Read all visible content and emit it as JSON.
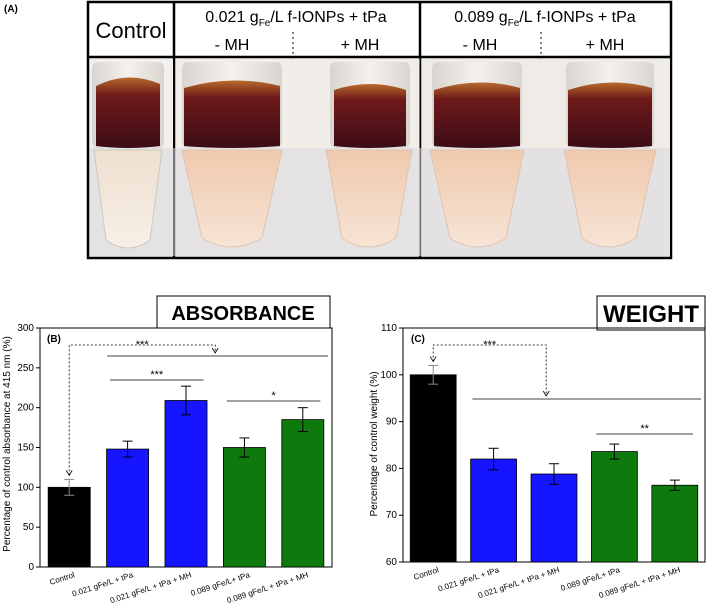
{
  "panel_a": {
    "label": "(A)",
    "control_header": "Control",
    "group1": {
      "prefix": "0.021 g",
      "sub": "Fe",
      "suffix": "/L f-IONPs + tPa",
      "minus": "- MH",
      "plus": "+ MH"
    },
    "group2": {
      "prefix": "0.089 g",
      "sub": "Fe",
      "suffix": "/L f-IONPs + tPa",
      "minus": "- MH",
      "plus": "+ MH"
    },
    "colors": {
      "clot_dark": "#4a0f18",
      "clot_red": "#7a1a22",
      "liquid_top": "#e6b89a",
      "liquid_bottom": "#f3dcc8",
      "frame": "#000000"
    }
  },
  "chart_data": [
    {
      "type": "bar",
      "panel_label": "(B)",
      "title": "ABSORBANCE",
      "ylabel": "Percentage of control absorbance at 415 nm (%)",
      "xlabel": "",
      "ylim": [
        0,
        300
      ],
      "yticks": [
        "0",
        "50",
        "100",
        "150",
        "200",
        "250",
        "300"
      ],
      "categories": [
        "Control",
        "0.021 gFe/L + tPa",
        "0.021 gFe/L + tPa + MH",
        "0.089 gFe/L+ tPa",
        "0.089 gFe/L + tPa + MH"
      ],
      "values": [
        100,
        148,
        209,
        150,
        185
      ],
      "errors": [
        10,
        10,
        18,
        12,
        15
      ],
      "colors": [
        "#000000",
        "#1515ff",
        "#1515ff",
        "#0e7a0e",
        "#0e7a0e"
      ],
      "significance": [
        {
          "label": "***",
          "from": 0,
          "to": "1-4",
          "style": "dashed-arrow"
        },
        {
          "label": "***",
          "from": 1,
          "to": 2,
          "style": "line"
        },
        {
          "label": "*",
          "from": 3,
          "to": 4,
          "style": "line"
        }
      ]
    },
    {
      "type": "bar",
      "panel_label": "(C)",
      "title": "WEIGHT",
      "ylabel": "Percentage of control weight (%)",
      "xlabel": "",
      "ylim": [
        60,
        110
      ],
      "yticks": [
        "60",
        "70",
        "80",
        "90",
        "100",
        "110"
      ],
      "categories": [
        "Control",
        "0.021 gFe/L + tPa",
        "0.021 gFe/L + tPa + MH",
        "0.089 gFe/L+ tPa",
        "0.089 gFe/L + tPa + MH"
      ],
      "values": [
        100,
        82,
        78.8,
        83.6,
        76.4
      ],
      "errors": [
        2,
        2.3,
        2.2,
        1.6,
        1.1
      ],
      "colors": [
        "#000000",
        "#1515ff",
        "#1515ff",
        "#0e7a0e",
        "#0e7a0e"
      ],
      "significance": [
        {
          "label": "***",
          "from": 0,
          "to": "1-4",
          "style": "dashed-arrow"
        },
        {
          "label": "**",
          "from": 3,
          "to": 4,
          "style": "line"
        }
      ]
    }
  ]
}
